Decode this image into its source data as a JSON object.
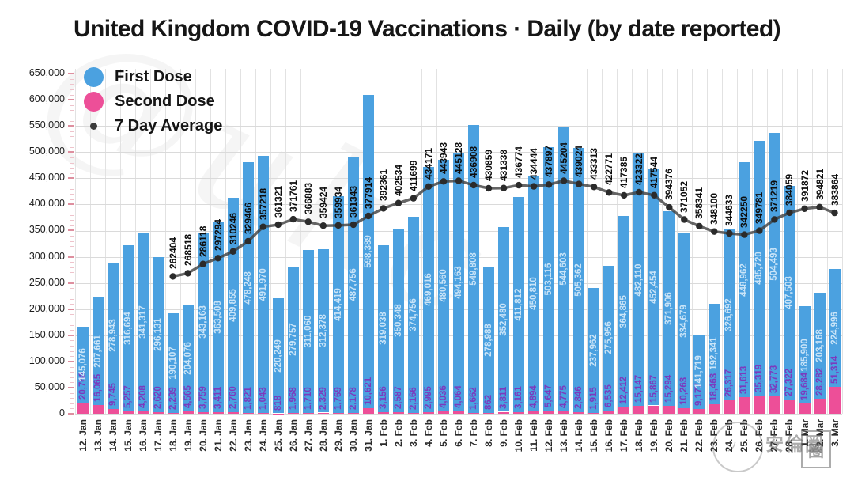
{
  "title": "United Kingdom COVID-19 Vaccinations · Daily (by date reported)",
  "legend": {
    "items": [
      {
        "label": "First Dose",
        "color": "#4BA1E0",
        "marker": "circle-large"
      },
      {
        "label": "Second Dose",
        "color": "#ED4F98",
        "marker": "circle-large"
      },
      {
        "label": "7 Day Average",
        "color": "#3C3C3C",
        "marker": "dot-small"
      }
    ]
  },
  "y_axis": {
    "tick_labels": [
      "0",
      "50,000",
      "100,000",
      "150,000",
      "200,000",
      "250,000",
      "300,000",
      "350,000",
      "400,000",
      "450,000",
      "500,000",
      "550,000",
      "600,000",
      "650,000"
    ],
    "tick_mark_color": "#DE8F9F"
  },
  "watermarks": {
    "script_text": "@ukc",
    "stamp_text": "安倫圈",
    "seal_char": "圈",
    "face_char": "ツ"
  },
  "chart_data": {
    "type": "bar",
    "stacked": true,
    "grid": true,
    "legend_position": "top-left",
    "title": "United Kingdom COVID-19 Vaccinations · Daily (by date reported)",
    "xlabel": "",
    "ylabel": "",
    "ylim": [
      0,
      650000
    ],
    "ytick_step": 50000,
    "x": [
      "12. Jan",
      "13. Jan",
      "14. Jan",
      "15. Jan",
      "16. Jan",
      "17. Jan",
      "18. Jan",
      "19. Jan",
      "20. Jan",
      "21. Jan",
      "22. Jan",
      "23. Jan",
      "24. Jan",
      "25. Jan",
      "26. Jan",
      "27. Jan",
      "28. Jan",
      "29. Jan",
      "30. Jan",
      "31. Jan",
      "1. Feb",
      "2. Feb",
      "3. Feb",
      "4. Feb",
      "5. Feb",
      "6. Feb",
      "7. Feb",
      "8. Feb",
      "9. Feb",
      "10. Feb",
      "11. Feb",
      "12. Feb",
      "13. Feb",
      "14. Feb",
      "15. Feb",
      "16. Feb",
      "17. Feb",
      "18. Feb",
      "19. Feb",
      "20. Feb",
      "21. Feb",
      "22. Feb",
      "23. Feb",
      "24. Feb",
      "25. Feb",
      "26. Feb",
      "27. Feb",
      "28. Feb",
      "1. Mar",
      "2. Mar",
      "3. Mar"
    ],
    "series": [
      {
        "name": "First Dose",
        "type": "bar",
        "color": "#4BA1E0",
        "label_color": "#C9E4F8",
        "values": [
          145076,
          207661,
          278943,
          316694,
          341317,
          296131,
          190107,
          204076,
          343163,
          363508,
          409855,
          478248,
          491970,
          220249,
          279757,
          311060,
          312378,
          414419,
          487756,
          598389,
          319038,
          350348,
          374756,
          469016,
          480560,
          494163,
          549808,
          278988,
          352480,
          411812,
          450810,
          503116,
          544603,
          505362,
          237962,
          275956,
          364865,
          482110,
          452454,
          371906,
          334679,
          141719,
          192341,
          326692,
          448962,
          485720,
          504493,
          407503,
          185900,
          203168,
          224996
        ]
      },
      {
        "name": "Second Dose",
        "type": "bar",
        "color": "#ED4F98",
        "label_color": "#7B3ABE",
        "values": [
          20768,
          16065,
          9745,
          5257,
          4208,
          2620,
          2239,
          4565,
          3759,
          3411,
          2760,
          1821,
          1043,
          818,
          1968,
          1710,
          2329,
          1769,
          2178,
          10621,
          3156,
          2587,
          2166,
          2995,
          4036,
          4064,
          1662,
          862,
          3811,
          3161,
          4894,
          5647,
          4775,
          2846,
          1915,
          6535,
          12412,
          15147,
          15867,
          15294,
          10263,
          9177,
          18463,
          26317,
          31613,
          35319,
          32773,
          27322,
          19684,
          28282,
          51314
        ]
      },
      {
        "name": "7 Day Average",
        "type": "line",
        "color": "#3E3E3E",
        "dot_color": "#2B2B2B",
        "label_color": "#0d0d0d",
        "values": [
          null,
          null,
          null,
          null,
          null,
          null,
          262404,
          268518,
          286118,
          297294,
          310246,
          329466,
          357218,
          361321,
          371761,
          366883,
          359424,
          359934,
          361343,
          377914,
          392361,
          402534,
          411699,
          434171,
          443943,
          445128,
          436908,
          430859,
          431338,
          436774,
          434444,
          437897,
          445204,
          439024,
          433313,
          422771,
          417385,
          423322,
          417544,
          394376,
          371052,
          358341,
          348100,
          344633,
          342250,
          349781,
          371219,
          384059,
          391872,
          394821,
          383864
        ]
      }
    ]
  }
}
